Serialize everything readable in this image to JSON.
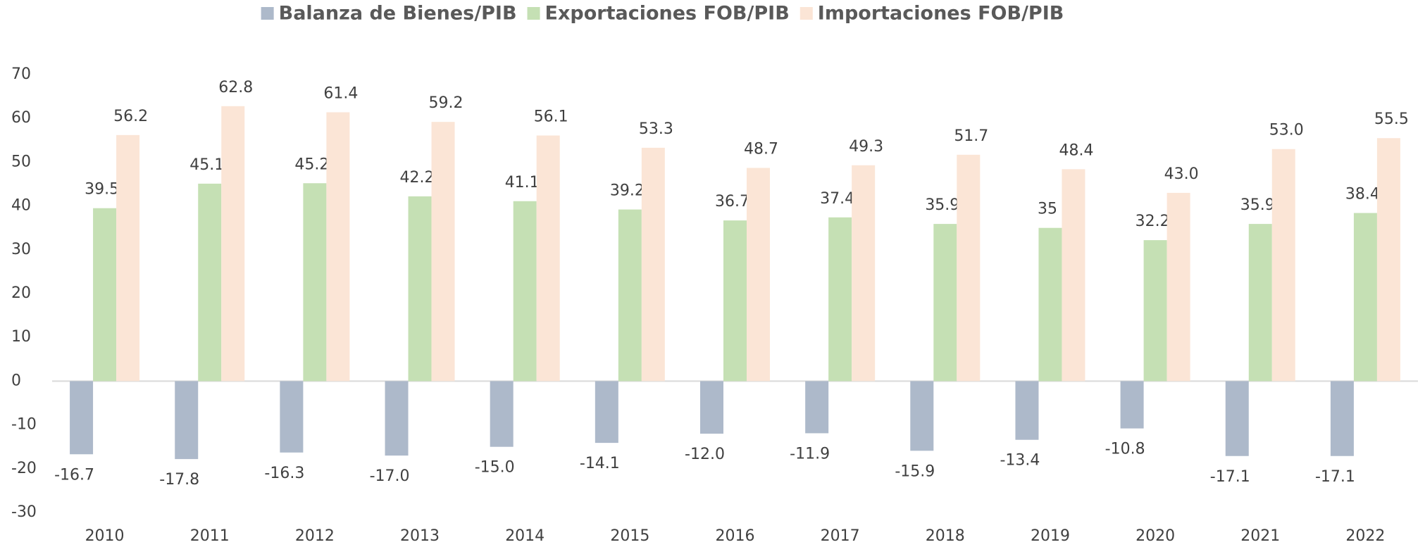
{
  "chart_data": {
    "type": "bar",
    "categories": [
      "2010",
      "2011",
      "2012",
      "2013",
      "2014",
      "2015",
      "2016",
      "2017",
      "2018",
      "2019",
      "2020",
      "2021",
      "2022"
    ],
    "series": [
      {
        "name": "Balanza de Bienes/PIB",
        "color": "#adb9ca",
        "values": [
          -16.7,
          -17.8,
          -16.3,
          -17.0,
          -15.0,
          -14.1,
          -12.0,
          -11.9,
          -15.9,
          -13.4,
          -10.8,
          -17.1,
          -17.1
        ],
        "value_labels": [
          "-16.7",
          "-17.8",
          "-16.3",
          "-17.0",
          "-15.0",
          "-14.1",
          "-12.0",
          "-11.9",
          "-15.9",
          "-13.4",
          "-10.8",
          "-17.1",
          "-17.1"
        ]
      },
      {
        "name": "Exportaciones FOB/PIB",
        "color": "#c5e0b4",
        "values": [
          39.5,
          45.1,
          45.2,
          42.2,
          41.1,
          39.2,
          36.7,
          37.4,
          35.9,
          35,
          32.2,
          35.9,
          38.4
        ],
        "value_labels": [
          "39.5",
          "45.1",
          "45.2",
          "42.2",
          "41.1",
          "39.2",
          "36.7",
          "37.4",
          "35.9",
          "35",
          "32.2",
          "35.9",
          "38.4"
        ]
      },
      {
        "name": "Importaciones FOB/PIB",
        "color": "#fbe5d6",
        "values": [
          56.2,
          62.8,
          61.4,
          59.2,
          56.1,
          53.3,
          48.7,
          49.3,
          51.7,
          48.4,
          43.0,
          53.0,
          55.5
        ],
        "value_labels": [
          "56.2",
          "62.8",
          "61.4",
          "59.2",
          "56.1",
          "53.3",
          "48.7",
          "49.3",
          "51.7",
          "48.4",
          "43.0",
          "53.0",
          "55.5"
        ]
      }
    ],
    "ylim": [
      -30,
      70
    ],
    "yticks": [
      -30,
      -20,
      -10,
      0,
      10,
      20,
      30,
      40,
      50,
      60,
      70
    ],
    "legend": "top",
    "grid": false
  }
}
